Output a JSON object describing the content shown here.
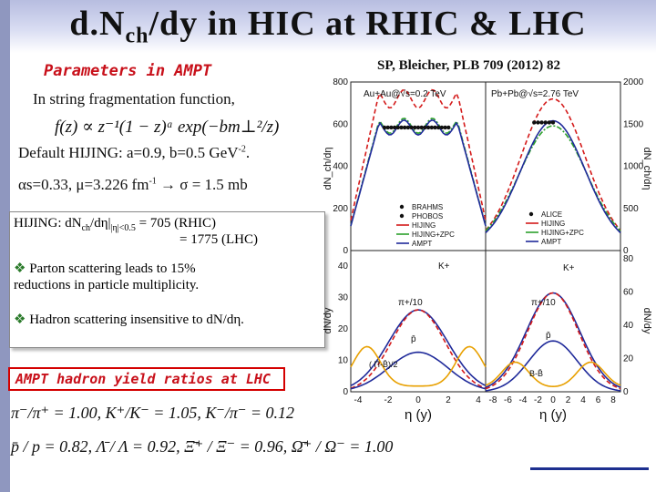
{
  "slide": {
    "title_pre": "d.N",
    "title_sub": "ch",
    "title_post": "/dy in HIC at RHIC & LHC",
    "reference": "SP, Bleicher, PLB 709 (2012) 82",
    "params_label": "Parameters in AMPT",
    "string_frag": "In string fragmentation function,",
    "fz_formula": "f(z) ∝ z⁻¹(1 − z)ᵃ exp(−bm⊥²/z)",
    "default_hijing": "Default HIJING: a=0.9,  b=0.5 GeV",
    "default_hijing_sup": "-2",
    "default_hijing_end": ".",
    "alpha_line": "αs=0.33,  μ=3.226 fm",
    "alpha_sup": "-1",
    "alpha_end": " → σ = 1.5 mb",
    "box": {
      "hijing_pre": "HIJING:  dN",
      "hijing_sub1": "ch",
      "hijing_mid": "/dη|",
      "hijing_sub2": "|η|<0.5",
      "rhic": " =  705  (RHIC)",
      "lhc": "=  1775 (LHC)",
      "parton": "Parton scattering leads to 15%",
      "parton2": "reductions in particle multiplicity.",
      "hadron": "Hadron scattering insensitive to dN/dη."
    },
    "ratios_label": "AMPT hadron yield ratios at LHC",
    "ratio_line1": "π⁻/π⁺ = 1.00,  K⁺/K⁻ = 1.05,  K⁻/π⁻ = 0.12",
    "ratio_line2": "p̄ / p = 0.82,  Λ̄ / Λ = 0.92,  Ξ̄⁺ / Ξ⁻ = 0.96,  Ω̄⁺ / Ω⁻ = 1.00"
  },
  "chart_data": [
    {
      "type": "line",
      "panel": "top-left",
      "annotation": "Au+Au@√s=0.2 TeV",
      "ylabel": "dN_ch/dη",
      "ylim": [
        0,
        800
      ],
      "yticks": [
        0,
        200,
        400,
        600,
        800
      ],
      "xlim": [
        -5,
        5
      ],
      "legend": [
        "BRAHMS",
        "PHOBOS",
        "HIJING",
        "HIJING+ZPC",
        "AMPT"
      ]
    },
    {
      "type": "line",
      "panel": "top-right",
      "annotation": "Pb+Pb@√s=2.76 TeV",
      "ylabel": "dN_ch/dη",
      "ylim": [
        0,
        2000
      ],
      "yticks": [
        0,
        500,
        1000,
        1500,
        2000
      ],
      "xlim": [
        -8,
        8
      ],
      "legend": [
        "ALICE",
        "HIJING",
        "HIJING+ZPC",
        "AMPT"
      ]
    },
    {
      "type": "line",
      "panel": "bottom-left",
      "ylabel": "dN/dy",
      "xlabel": "η (y)",
      "ylim": [
        0,
        45
      ],
      "yticks": [
        0,
        10,
        20,
        30,
        40
      ],
      "xticks": [
        -4,
        -2,
        0,
        2,
        4
      ],
      "labels": [
        "K+",
        "π+/10",
        "p̄",
        "( Π-B̄)/2"
      ]
    },
    {
      "type": "line",
      "panel": "bottom-right",
      "ylabel": "dN/dy",
      "xlabel": "η (y)",
      "ylim": [
        0,
        85
      ],
      "yticks": [
        0,
        20,
        40,
        60,
        80
      ],
      "xticks": [
        -8,
        -6,
        -4,
        -2,
        0,
        2,
        4,
        6,
        8
      ],
      "labels": [
        "K+",
        "π+/10",
        "p̄",
        "B-B̄"
      ]
    }
  ],
  "colors": {
    "accent_red": "#c8101a",
    "series_hijing": "#d41a1a",
    "series_zpc": "#2ca02c",
    "series_ampt": "#1f2a9a",
    "series_orange": "#e8a000",
    "band_top": "#b7bde0"
  }
}
